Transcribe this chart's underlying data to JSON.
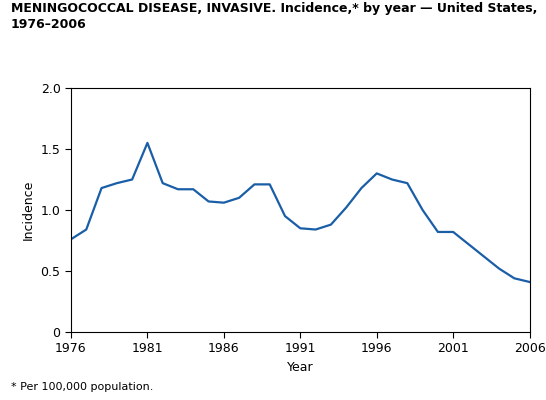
{
  "title_line1": "MENINGOCOCCAL DISEASE, INVASIVE. Incidence,* by year — United States,",
  "title_line2": "1976–2006",
  "xlabel": "Year",
  "ylabel": "Incidence",
  "footnote": "* Per 100,000 population.",
  "line_color": "#1a5ea8",
  "line_width": 1.6,
  "background_color": "#ffffff",
  "xlim": [
    1976,
    2006
  ],
  "ylim": [
    0,
    2.0
  ],
  "xticks": [
    1976,
    1981,
    1986,
    1991,
    1996,
    2001,
    2006
  ],
  "yticks": [
    0,
    0.5,
    1.0,
    1.5,
    2.0
  ],
  "years": [
    1976,
    1977,
    1978,
    1979,
    1980,
    1981,
    1982,
    1983,
    1984,
    1985,
    1986,
    1987,
    1988,
    1989,
    1990,
    1991,
    1992,
    1993,
    1994,
    1995,
    1996,
    1997,
    1998,
    1999,
    2000,
    2001,
    2002,
    2003,
    2004,
    2005,
    2006
  ],
  "values": [
    0.76,
    0.84,
    1.18,
    1.22,
    1.25,
    1.55,
    1.22,
    1.17,
    1.17,
    1.07,
    1.06,
    1.1,
    1.21,
    1.21,
    0.95,
    0.85,
    0.84,
    0.88,
    1.02,
    1.18,
    1.3,
    1.25,
    1.22,
    1.0,
    0.82,
    0.82,
    0.72,
    0.62,
    0.52,
    0.44,
    0.41
  ]
}
